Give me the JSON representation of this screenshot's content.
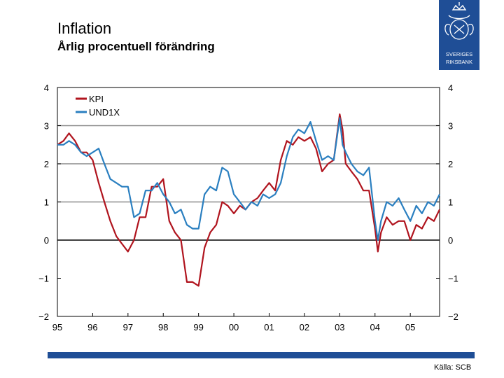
{
  "header": {
    "title": "Inflation",
    "subtitle": "Årlig procentuell förändring"
  },
  "logo": {
    "line1": "SVERIGES",
    "line2": "RIKSBANK"
  },
  "footer": {
    "source": "Källa: SCB"
  },
  "colors": {
    "kpi": "#b0141e",
    "und1x": "#2a7fc0",
    "brand": "#1f4e96"
  },
  "chart_data": {
    "type": "line",
    "title": "Inflation",
    "subtitle": "Årlig procentuell förändring",
    "xlabel": "",
    "ylabel": "",
    "ylim": [
      -2,
      4
    ],
    "yticks": [
      4,
      3,
      2,
      1,
      0,
      -1,
      -2
    ],
    "yticks_right": [
      4,
      3,
      2,
      1,
      0,
      -1,
      -2
    ],
    "xlim": [
      1995.0,
      2005.83
    ],
    "xticks": [
      {
        "x": 1995.0,
        "label": "95"
      },
      {
        "x": 1996.0,
        "label": "96"
      },
      {
        "x": 1997.0,
        "label": "97"
      },
      {
        "x": 1998.0,
        "label": "98"
      },
      {
        "x": 1999.0,
        "label": "99"
      },
      {
        "x": 2000.0,
        "label": "00"
      },
      {
        "x": 2001.0,
        "label": "01"
      },
      {
        "x": 2002.0,
        "label": "02"
      },
      {
        "x": 2003.0,
        "label": "03"
      },
      {
        "x": 2004.0,
        "label": "04"
      },
      {
        "x": 2005.0,
        "label": "05"
      }
    ],
    "gridlines": [
      1,
      2,
      3
    ],
    "legend": "top-left",
    "series": [
      {
        "name": "KPI",
        "color": "#b0141e",
        "x": [
          1995.0,
          1995.17,
          1995.33,
          1995.5,
          1995.67,
          1995.83,
          1996.0,
          1996.17,
          1996.33,
          1996.5,
          1996.67,
          1996.83,
          1997.0,
          1997.17,
          1997.33,
          1997.5,
          1997.67,
          1997.83,
          1998.0,
          1998.17,
          1998.33,
          1998.5,
          1998.67,
          1998.83,
          1999.0,
          1999.17,
          1999.33,
          1999.5,
          1999.67,
          1999.83,
          2000.0,
          2000.17,
          2000.33,
          2000.5,
          2000.67,
          2000.83,
          2001.0,
          2001.17,
          2001.33,
          2001.5,
          2001.67,
          2001.83,
          2002.0,
          2002.17,
          2002.33,
          2002.5,
          2002.67,
          2002.83,
          2003.0,
          2003.08,
          2003.17,
          2003.33,
          2003.5,
          2003.67,
          2003.83,
          2004.0,
          2004.08,
          2004.17,
          2004.33,
          2004.5,
          2004.67,
          2004.83,
          2005.0,
          2005.17,
          2005.33,
          2005.5,
          2005.67,
          2005.83
        ],
        "values": [
          2.5,
          2.6,
          2.8,
          2.6,
          2.3,
          2.3,
          2.1,
          1.5,
          1.0,
          0.5,
          0.1,
          -0.1,
          -0.3,
          0.0,
          0.6,
          0.6,
          1.4,
          1.4,
          1.6,
          0.5,
          0.2,
          0.0,
          -1.1,
          -1.1,
          -1.2,
          -0.2,
          0.2,
          0.4,
          1.0,
          0.9,
          0.7,
          0.9,
          0.8,
          1.0,
          1.1,
          1.3,
          1.5,
          1.3,
          2.1,
          2.6,
          2.5,
          2.7,
          2.6,
          2.7,
          2.4,
          1.8,
          2.0,
          2.1,
          3.3,
          2.9,
          2.0,
          1.8,
          1.6,
          1.3,
          1.3,
          0.3,
          -0.3,
          0.2,
          0.6,
          0.4,
          0.5,
          0.5,
          0.0,
          0.4,
          0.3,
          0.6,
          0.5,
          0.8
        ]
      },
      {
        "name": "UND1X",
        "color": "#2a7fc0",
        "x": [
          1995.0,
          1995.17,
          1995.33,
          1995.5,
          1995.67,
          1995.83,
          1996.0,
          1996.17,
          1996.33,
          1996.5,
          1996.67,
          1996.83,
          1997.0,
          1997.17,
          1997.33,
          1997.5,
          1997.67,
          1997.83,
          1998.0,
          1998.17,
          1998.33,
          1998.5,
          1998.67,
          1998.83,
          1999.0,
          1999.17,
          1999.33,
          1999.5,
          1999.67,
          1999.83,
          2000.0,
          2000.17,
          2000.33,
          2000.5,
          2000.67,
          2000.83,
          2001.0,
          2001.17,
          2001.33,
          2001.5,
          2001.67,
          2001.83,
          2002.0,
          2002.17,
          2002.33,
          2002.5,
          2002.67,
          2002.83,
          2003.0,
          2003.08,
          2003.17,
          2003.33,
          2003.5,
          2003.67,
          2003.83,
          2004.0,
          2004.08,
          2004.17,
          2004.33,
          2004.5,
          2004.67,
          2004.83,
          2005.0,
          2005.17,
          2005.33,
          2005.5,
          2005.67,
          2005.83
        ],
        "values": [
          2.5,
          2.5,
          2.6,
          2.5,
          2.3,
          2.2,
          2.3,
          2.4,
          2.0,
          1.6,
          1.5,
          1.4,
          1.4,
          0.6,
          0.7,
          1.3,
          1.3,
          1.5,
          1.2,
          1.0,
          0.7,
          0.8,
          0.4,
          0.3,
          0.3,
          1.2,
          1.4,
          1.3,
          1.9,
          1.8,
          1.2,
          1.0,
          0.8,
          1.0,
          0.9,
          1.2,
          1.1,
          1.2,
          1.5,
          2.2,
          2.7,
          2.9,
          2.8,
          3.1,
          2.6,
          2.1,
          2.2,
          2.1,
          3.2,
          2.5,
          2.3,
          2.0,
          1.8,
          1.7,
          1.9,
          0.5,
          0.0,
          0.5,
          1.0,
          0.9,
          1.1,
          0.8,
          0.5,
          0.9,
          0.7,
          1.0,
          0.9,
          1.2
        ]
      }
    ]
  }
}
